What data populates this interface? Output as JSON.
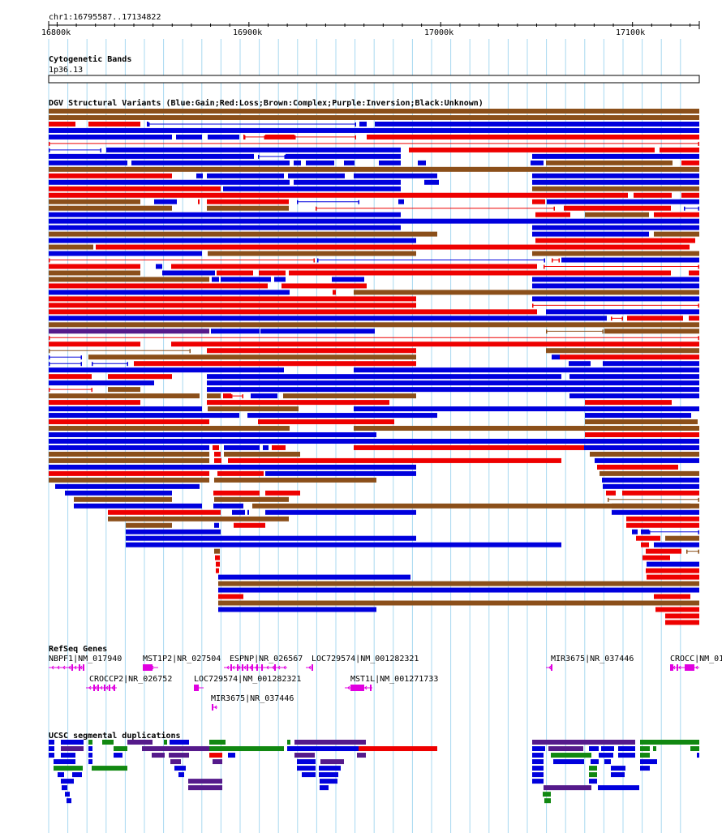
{
  "position": {
    "label": "chr1:16795587..17134822"
  },
  "ruler": {
    "ticks": [
      {
        "label": "16800k",
        "bp": 16800000
      },
      {
        "label": "16900k",
        "bp": 16900000
      },
      {
        "label": "17000k",
        "bp": 17000000
      },
      {
        "label": "17100k",
        "bp": 17100000
      }
    ],
    "range_bp": [
      16795587,
      17134822
    ]
  },
  "tracks": {
    "cytobands": {
      "title": "Cytogenetic Bands",
      "band": "1p36.13"
    },
    "dgv": {
      "title": "DGV Structural Variants (Blue:Gain;Red:Loss;Brown:Complex;Purple:Inversion;Black:Unknown)"
    },
    "refseq": {
      "title": "RefSeq Genes",
      "genes": [
        {
          "label": "NBPF1|NM_017940"
        },
        {
          "label": "MST1P2|NR_027504"
        },
        {
          "label": "ESPNP|NR_026567"
        },
        {
          "label": "LOC729574|NM_001282321"
        },
        {
          "label": "MIR3675|NR_037446"
        },
        {
          "label": "CROCC|NM_01"
        },
        {
          "label": "CROCCP2|NR_026752"
        },
        {
          "label": "LOC729574|NM_001282321"
        },
        {
          "label": "MST1L|NM_001271733"
        },
        {
          "label": "MIR3675|NR_037446"
        }
      ]
    },
    "segdups": {
      "title": "UCSC segmental duplications"
    }
  },
  "colors": {
    "gain": "#0000dd",
    "loss": "#ee0000",
    "complex": "#8b4f1a",
    "inversion": "#551a8b",
    "unknown": "#000000",
    "gene": "#e000e0",
    "segdup_green": "#118811",
    "gridline": "#a8d8f0"
  }
}
